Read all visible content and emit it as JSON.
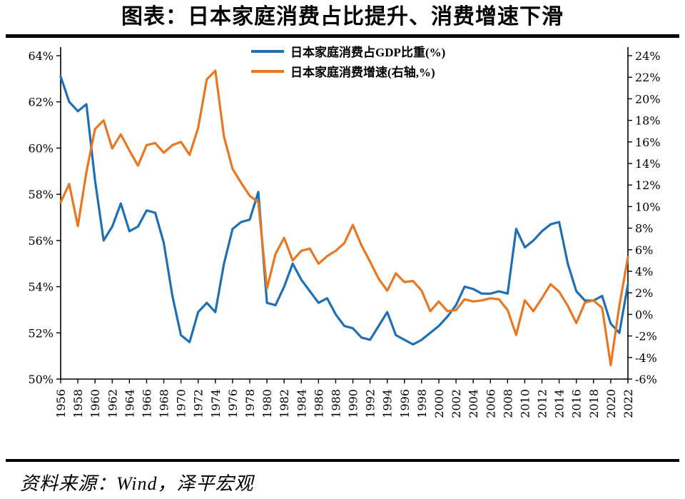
{
  "page": {
    "title": "图表：日本家庭消费占比提升、消费增速下滑",
    "source": "资料来源：Wind，泽平宏观"
  },
  "chart_data": {
    "type": "line",
    "title": "图表：日本家庭消费占比提升、消费增速下滑",
    "xlabel": "",
    "ylabel": "",
    "grid": false,
    "legend_position": "top-center",
    "x_tick_step": 2,
    "left_axis": {
      "min": 50,
      "max": 64,
      "step": 2,
      "suffix": "%"
    },
    "right_axis": {
      "min": -6,
      "max": 24,
      "step": 2,
      "suffix": "%"
    },
    "x": [
      1956,
      1957,
      1958,
      1959,
      1960,
      1961,
      1962,
      1963,
      1964,
      1965,
      1966,
      1967,
      1968,
      1969,
      1970,
      1971,
      1972,
      1973,
      1974,
      1975,
      1976,
      1977,
      1978,
      1979,
      1980,
      1981,
      1982,
      1983,
      1984,
      1985,
      1986,
      1987,
      1988,
      1989,
      1990,
      1991,
      1992,
      1993,
      1994,
      1995,
      1996,
      1997,
      1998,
      1999,
      2000,
      2001,
      2002,
      2003,
      2004,
      2005,
      2006,
      2007,
      2008,
      2009,
      2010,
      2011,
      2012,
      2013,
      2014,
      2015,
      2016,
      2017,
      2018,
      2019,
      2020,
      2021,
      2022
    ],
    "series": [
      {
        "name": "日本家庭消费占GDP比重(%)",
        "axis": "left",
        "color": "#1E6FB5",
        "values": [
          63.1,
          62.0,
          61.6,
          61.9,
          58.6,
          56.0,
          56.6,
          57.6,
          56.4,
          56.6,
          57.3,
          57.2,
          55.9,
          53.6,
          51.9,
          51.6,
          52.9,
          53.3,
          52.9,
          55.0,
          56.5,
          56.8,
          56.9,
          58.1,
          53.3,
          53.2,
          54.0,
          55.0,
          54.3,
          53.8,
          53.3,
          53.5,
          52.8,
          52.3,
          52.2,
          51.8,
          51.7,
          52.3,
          52.9,
          51.9,
          51.7,
          51.5,
          51.7,
          52.0,
          52.3,
          52.7,
          53.2,
          54.0,
          53.9,
          53.7,
          53.7,
          53.8,
          53.7,
          56.5,
          55.7,
          56.0,
          56.4,
          56.7,
          56.8,
          55.0,
          53.8,
          53.4,
          53.4,
          53.6,
          52.4,
          52.0,
          54.1
        ]
      },
      {
        "name": "日本家庭消费增速(右轴,%)",
        "axis": "right",
        "color": "#E87722",
        "values": [
          10.4,
          12.1,
          8.2,
          13.2,
          17.2,
          18.0,
          15.4,
          16.7,
          15.2,
          13.8,
          15.7,
          15.9,
          15.0,
          15.7,
          16.0,
          14.8,
          17.3,
          21.8,
          22.6,
          16.5,
          13.5,
          12.2,
          11.0,
          10.4,
          2.4,
          5.6,
          7.1,
          5.0,
          5.9,
          6.1,
          4.7,
          5.4,
          5.9,
          6.6,
          8.3,
          6.4,
          4.9,
          3.3,
          2.2,
          3.8,
          3.0,
          3.1,
          2.2,
          0.3,
          1.2,
          0.3,
          0.4,
          1.4,
          1.2,
          1.3,
          1.5,
          1.4,
          0.4,
          -1.9,
          1.3,
          0.3,
          1.5,
          2.8,
          2.1,
          0.8,
          -0.8,
          1.1,
          1.3,
          0.6,
          -4.7,
          0.8,
          5.3
        ]
      }
    ]
  }
}
